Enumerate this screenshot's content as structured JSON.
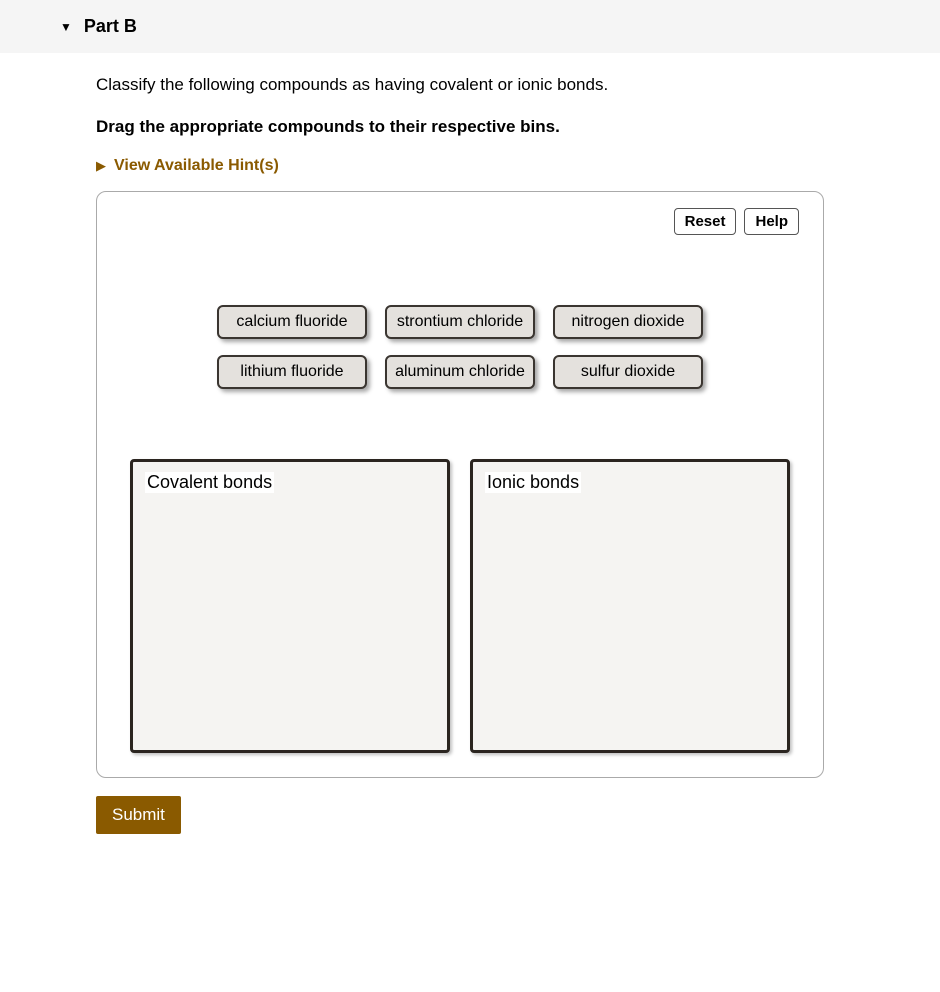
{
  "header": {
    "part_label": "Part B",
    "collapse_glyph": "▼"
  },
  "question": {
    "prompt": "Classify the following compounds as having covalent or ionic bonds.",
    "instruction": "Drag the appropriate compounds to their respective bins."
  },
  "hints": {
    "triangle_glyph": "▶",
    "label": "View Available Hint(s)",
    "accent_color": "#8a5a00"
  },
  "toolbar": {
    "reset_label": "Reset",
    "help_label": "Help"
  },
  "tiles": {
    "row1": [
      {
        "label": "calcium fluoride"
      },
      {
        "label": "strontium chloride"
      },
      {
        "label": "nitrogen dioxide"
      },
      {
        "label": "lithium fluoride"
      }
    ],
    "row2": [
      {
        "label": "aluminum chloride"
      },
      {
        "label": "sulfur dioxide"
      }
    ]
  },
  "bins": {
    "left": {
      "label": "Covalent bonds"
    },
    "right": {
      "label": "Ionic bonds"
    }
  },
  "submit": {
    "label": "Submit",
    "bg_color": "#8a5a00"
  },
  "styling": {
    "tile_bg": "#e4e1dd",
    "tile_border": "#3a3530",
    "bin_bg": "#f5f4f2",
    "bin_border": "#2b2520",
    "header_bg": "#f5f5f5"
  }
}
